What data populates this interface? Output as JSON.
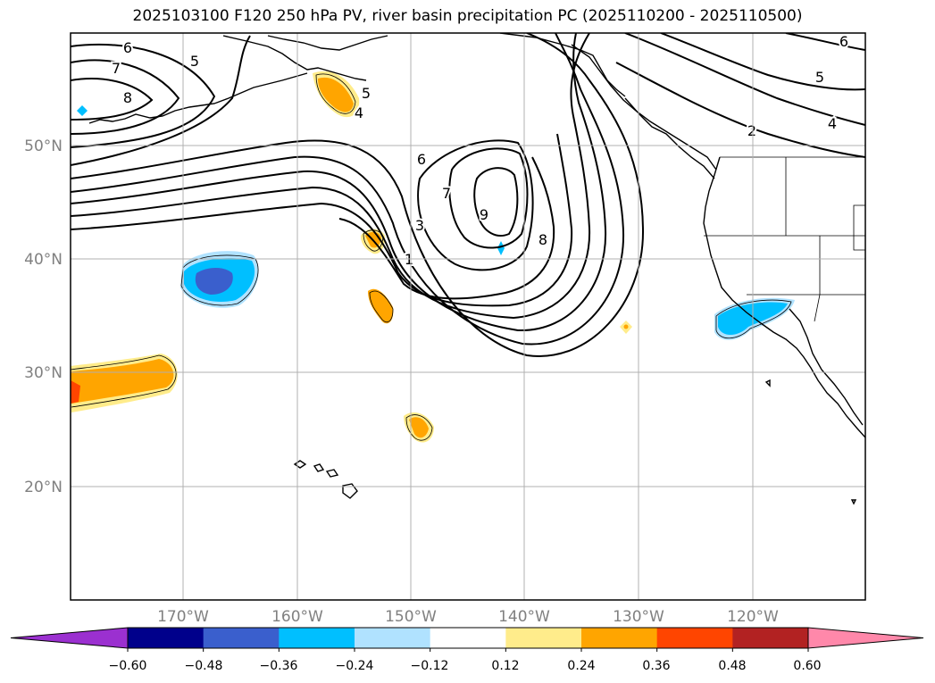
{
  "title": "2025103100 F120 250 hPa PV, river basin precipitation PC (2025110200 - 2025110500)",
  "lat_labels": [
    "50°N",
    "40°N",
    "30°N",
    "20°N"
  ],
  "lon_labels": [
    "170°W",
    "160°W",
    "150°W",
    "140°W",
    "130°W",
    "120°W"
  ],
  "contour_labels": [
    "6",
    "7",
    "8",
    "5",
    "4",
    "5",
    "6",
    "7",
    "3",
    "1",
    "9",
    "8",
    "5",
    "4",
    "2",
    "6"
  ],
  "colorbar": {
    "tick_labels": [
      "−0.60",
      "−0.48",
      "−0.36",
      "−0.24",
      "−0.12",
      "0.12",
      "0.24",
      "0.36",
      "0.48",
      "0.60"
    ],
    "colors": [
      "#9b30d0",
      "#00008b",
      "#3a5fcd",
      "#00bfff",
      "#b0e2ff",
      "#ffffff",
      "#ffec8b",
      "#ffa500",
      "#ff4500",
      "#b22222",
      "#ff88aa"
    ]
  },
  "colors": {
    "pos_light": "#ffec8b",
    "pos_mid": "#ffa500",
    "pos_strong": "#ff4500",
    "neg_light": "#b0e2ff",
    "neg_mid": "#00bfff",
    "neg_strong": "#3a5fcd",
    "grid": "#b0b0b0",
    "axis_label": "#808080"
  }
}
